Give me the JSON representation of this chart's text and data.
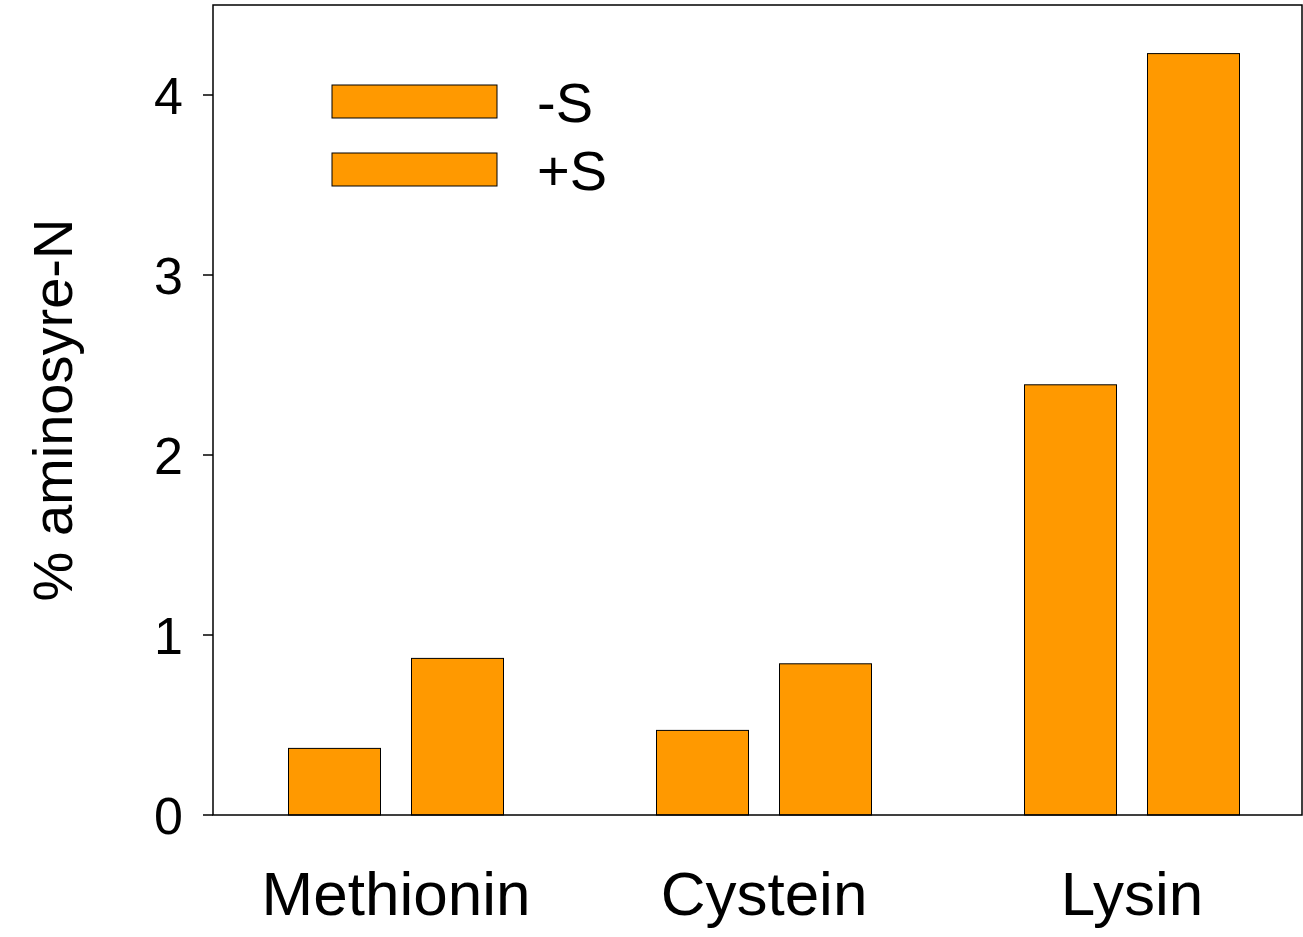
{
  "chart_data": {
    "type": "bar",
    "ylabel": "% aminosyre-N",
    "categories": [
      "Methionin",
      "Cystein",
      "Lysin"
    ],
    "series": [
      {
        "name": "-S",
        "color": "#ff9900",
        "values": [
          0.37,
          0.47,
          2.39
        ]
      },
      {
        "name": "+S",
        "color": "#ff9900",
        "values": [
          0.87,
          0.84,
          4.23
        ]
      }
    ],
    "ylim": [
      0,
      4.5
    ],
    "yticks": [
      0,
      1,
      2,
      3,
      4
    ],
    "legend": "top left",
    "grid": false
  }
}
